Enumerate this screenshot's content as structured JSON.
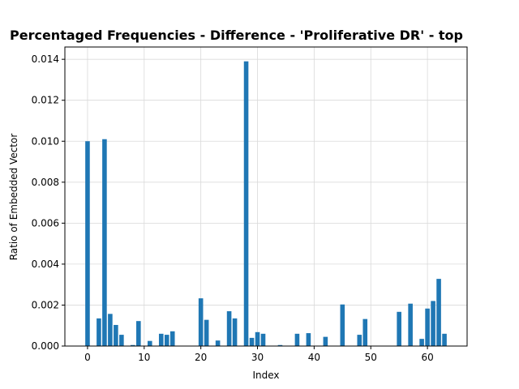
{
  "chart_data": {
    "type": "bar",
    "title": "Percentaged Frequencies - Difference - 'Proliferative DR' - top",
    "xlabel": "Index",
    "ylabel": "Ratio of Embedded Vector",
    "xlim": [
      -4,
      67
    ],
    "ylim": [
      0,
      0.0146
    ],
    "xticks": [
      0,
      10,
      20,
      30,
      40,
      50,
      60
    ],
    "yticks": [
      0.0,
      0.002,
      0.004,
      0.006,
      0.008,
      0.01,
      0.012,
      0.014
    ],
    "ytick_labels": [
      "0.000",
      "0.002",
      "0.004",
      "0.006",
      "0.008",
      "0.010",
      "0.012",
      "0.014"
    ],
    "grid": true,
    "bar_color": "#1f77b4",
    "x": [
      0,
      2,
      3,
      4,
      5,
      6,
      8,
      9,
      11,
      13,
      14,
      15,
      20,
      21,
      23,
      25,
      26,
      28,
      29,
      30,
      31,
      34,
      37,
      39,
      42,
      45,
      48,
      49,
      55,
      57,
      59,
      60,
      61,
      62,
      63
    ],
    "values": [
      0.01,
      0.00135,
      0.0101,
      0.00157,
      0.00103,
      0.00055,
      5e-05,
      0.00122,
      0.00025,
      0.0006,
      0.00055,
      0.00072,
      0.00233,
      0.00128,
      0.00027,
      0.0017,
      0.00135,
      0.0139,
      0.0004,
      0.00068,
      0.0006,
      5e-05,
      0.0006,
      0.00063,
      0.00045,
      0.00203,
      0.00055,
      0.00132,
      0.00167,
      0.00207,
      0.00035,
      0.00183,
      0.0022,
      0.00328,
      0.0006
    ]
  }
}
